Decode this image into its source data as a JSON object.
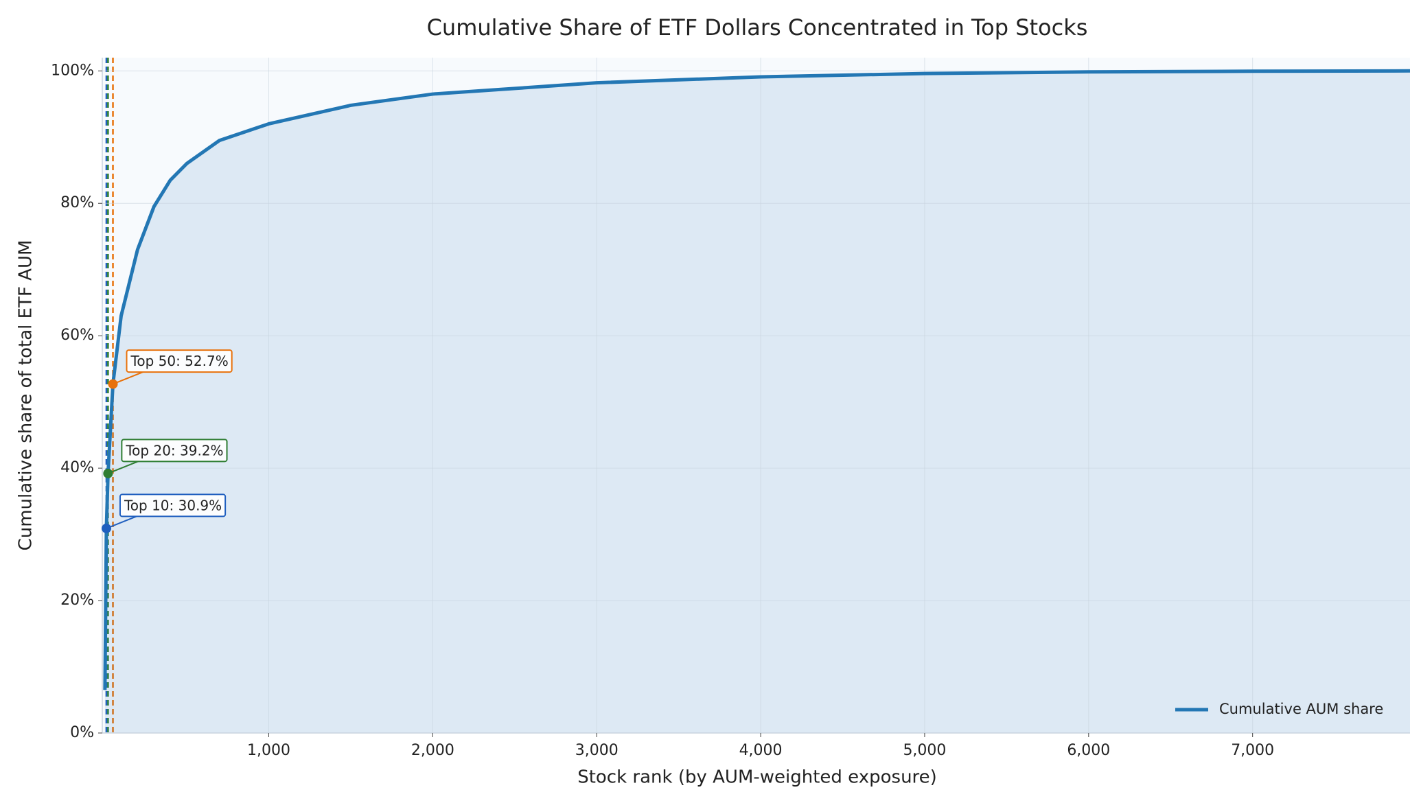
{
  "chart_data": {
    "type": "line",
    "title": "Cumulative Share of ETF Dollars Concentrated in Top Stocks",
    "xlabel": "Stock rank (by AUM-weighted exposure)",
    "ylabel": "Cumulative share of total ETF AUM",
    "series": [
      {
        "name": "Cumulative AUM share",
        "color": "#2377b4",
        "x": [
          1,
          10,
          20,
          50,
          100,
          200,
          300,
          400,
          500,
          700,
          1000,
          1500,
          2000,
          3000,
          4000,
          5000,
          6000,
          7000,
          7960
        ],
        "values": [
          6.5,
          30.9,
          39.2,
          52.7,
          63,
          73,
          79.5,
          83.5,
          86,
          89.5,
          92,
          94.8,
          96.5,
          98.2,
          99.1,
          99.6,
          99.85,
          99.95,
          100
        ]
      }
    ],
    "xlim": [
      -15,
      7960
    ],
    "ylim": [
      0,
      102
    ],
    "xticks": [
      {
        "value": 1000,
        "label": "1,000"
      },
      {
        "value": 2000,
        "label": "2,000"
      },
      {
        "value": 3000,
        "label": "3,000"
      },
      {
        "value": 4000,
        "label": "4,000"
      },
      {
        "value": 5000,
        "label": "5,000"
      },
      {
        "value": 6000,
        "label": "6,000"
      },
      {
        "value": 7000,
        "label": "7,000"
      }
    ],
    "yticks": [
      {
        "value": 0,
        "label": "0%"
      },
      {
        "value": 20,
        "label": "20%"
      },
      {
        "value": 40,
        "label": "40%"
      },
      {
        "value": 60,
        "label": "60%"
      },
      {
        "value": 80,
        "label": "80%"
      },
      {
        "value": 100,
        "label": "100%"
      }
    ],
    "grid": true,
    "fill": true,
    "legend": "lower right",
    "annotations": [
      {
        "text": "Top 10: 30.9%",
        "x": 10,
        "y": 30.9,
        "color": "#1f5fbf"
      },
      {
        "text": "Top 20: 39.2%",
        "x": 20,
        "y": 39.2,
        "color": "#2e7d32"
      },
      {
        "text": "Top 50: 52.7%",
        "x": 50,
        "y": 52.7,
        "color": "#e8710a"
      }
    ]
  }
}
